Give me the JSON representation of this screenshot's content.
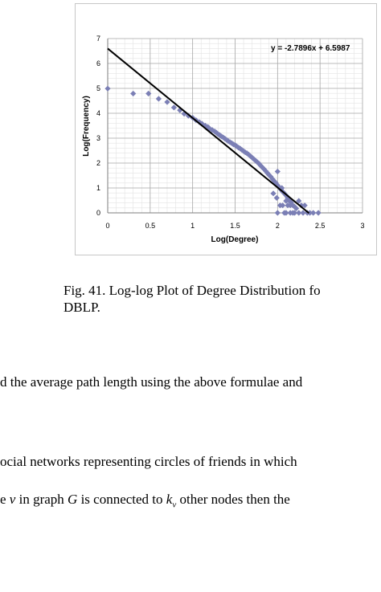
{
  "figure": {
    "caption_line1": "Fig. 41. Log-log Plot of Degree Distribution fo",
    "caption_line2": "DBLP."
  },
  "chart_data": {
    "type": "scatter",
    "title": "",
    "xlabel": "Log(Degree)",
    "ylabel": "Log(Frequency)",
    "xlim": [
      0,
      3
    ],
    "ylim": [
      0,
      7
    ],
    "xticks": [
      "0",
      "0.5",
      "1",
      "1.5",
      "2",
      "2.5",
      "3"
    ],
    "yticks": [
      "0",
      "1",
      "2",
      "3",
      "4",
      "5",
      "6",
      "7"
    ],
    "grid": true,
    "marker_color": "#7b7fb5",
    "trendline": {
      "label": "y = -2.7896x + 6.5987",
      "slope": -2.7896,
      "intercept": 6.5987,
      "x_range": [
        0,
        2.37
      ],
      "color": "#000000"
    },
    "points": [
      [
        0,
        4.99
      ],
      [
        0.3,
        4.79
      ],
      [
        0.48,
        4.79
      ],
      [
        0.6,
        4.58
      ],
      [
        0.7,
        4.45
      ],
      [
        0.78,
        4.23
      ],
      [
        0.85,
        4.12
      ],
      [
        0.9,
        3.98
      ],
      [
        0.95,
        3.9
      ],
      [
        1.0,
        3.82
      ],
      [
        1.04,
        3.72
      ],
      [
        1.08,
        3.64
      ],
      [
        1.11,
        3.58
      ],
      [
        1.15,
        3.5
      ],
      [
        1.18,
        3.45
      ],
      [
        1.2,
        3.38
      ],
      [
        1.23,
        3.33
      ],
      [
        1.26,
        3.27
      ],
      [
        1.28,
        3.22
      ],
      [
        1.3,
        3.16
      ],
      [
        1.32,
        3.12
      ],
      [
        1.34,
        3.07
      ],
      [
        1.36,
        3.03
      ],
      [
        1.38,
        2.98
      ],
      [
        1.4,
        2.93
      ],
      [
        1.42,
        2.88
      ],
      [
        1.44,
        2.84
      ],
      [
        1.46,
        2.8
      ],
      [
        1.48,
        2.75
      ],
      [
        1.5,
        2.72
      ],
      [
        1.52,
        2.67
      ],
      [
        1.54,
        2.62
      ],
      [
        1.56,
        2.58
      ],
      [
        1.58,
        2.53
      ],
      [
        1.6,
        2.48
      ],
      [
        1.62,
        2.43
      ],
      [
        1.64,
        2.39
      ],
      [
        1.66,
        2.34
      ],
      [
        1.68,
        2.28
      ],
      [
        1.7,
        2.22
      ],
      [
        1.72,
        2.16
      ],
      [
        1.74,
        2.1
      ],
      [
        1.76,
        2.04
      ],
      [
        1.78,
        1.98
      ],
      [
        1.8,
        1.9
      ],
      [
        1.82,
        1.83
      ],
      [
        1.84,
        1.76
      ],
      [
        1.86,
        1.68
      ],
      [
        1.88,
        1.6
      ],
      [
        1.9,
        1.52
      ],
      [
        1.92,
        1.45
      ],
      [
        1.94,
        1.36
      ],
      [
        1.96,
        1.28
      ],
      [
        1.98,
        1.2
      ],
      [
        2.0,
        1.11
      ],
      [
        2.02,
        1.02
      ],
      [
        2.04,
        0.93
      ],
      [
        2.06,
        0.85
      ],
      [
        2.08,
        0.78
      ],
      [
        2.1,
        0.7
      ],
      [
        2.12,
        0.6
      ],
      [
        2.14,
        0.48
      ],
      [
        2.16,
        0.42
      ],
      [
        2.18,
        0.3
      ],
      [
        2.2,
        0.25
      ],
      [
        2.22,
        0.18
      ],
      [
        2.25,
        0.48
      ],
      [
        2.28,
        0.3
      ],
      [
        2.3,
        0.0
      ],
      [
        2.32,
        0.3
      ],
      [
        2.35,
        0.0
      ],
      [
        2.38,
        0.0
      ],
      [
        2.42,
        0.0
      ],
      [
        2.48,
        0.0
      ],
      [
        2.0,
        1.66
      ],
      [
        2.05,
        1.0
      ],
      [
        2.1,
        0.48
      ],
      [
        2.15,
        0.3
      ],
      [
        2.2,
        0.0
      ],
      [
        2.25,
        0.0
      ],
      [
        2.0,
        0.0
      ],
      [
        2.06,
        0.3
      ],
      [
        2.1,
        0.0
      ],
      [
        2.15,
        0.0
      ],
      [
        1.95,
        0.78
      ],
      [
        1.99,
        0.6
      ],
      [
        2.03,
        0.3
      ],
      [
        2.08,
        0.0
      ],
      [
        2.12,
        0.3
      ],
      [
        2.18,
        0.0
      ]
    ]
  },
  "body": {
    "line1": "d the average path length using the above formulae and",
    "line2": "ocial networks representing circles of friends in which",
    "line3_pre": "e ",
    "line3_v": "v",
    "line3_mid1": " in graph ",
    "line3_G": "G",
    "line3_mid2": " is connected to ",
    "line3_k": "k",
    "line3_sub": "v",
    "line3_post": " other nodes  then the"
  }
}
